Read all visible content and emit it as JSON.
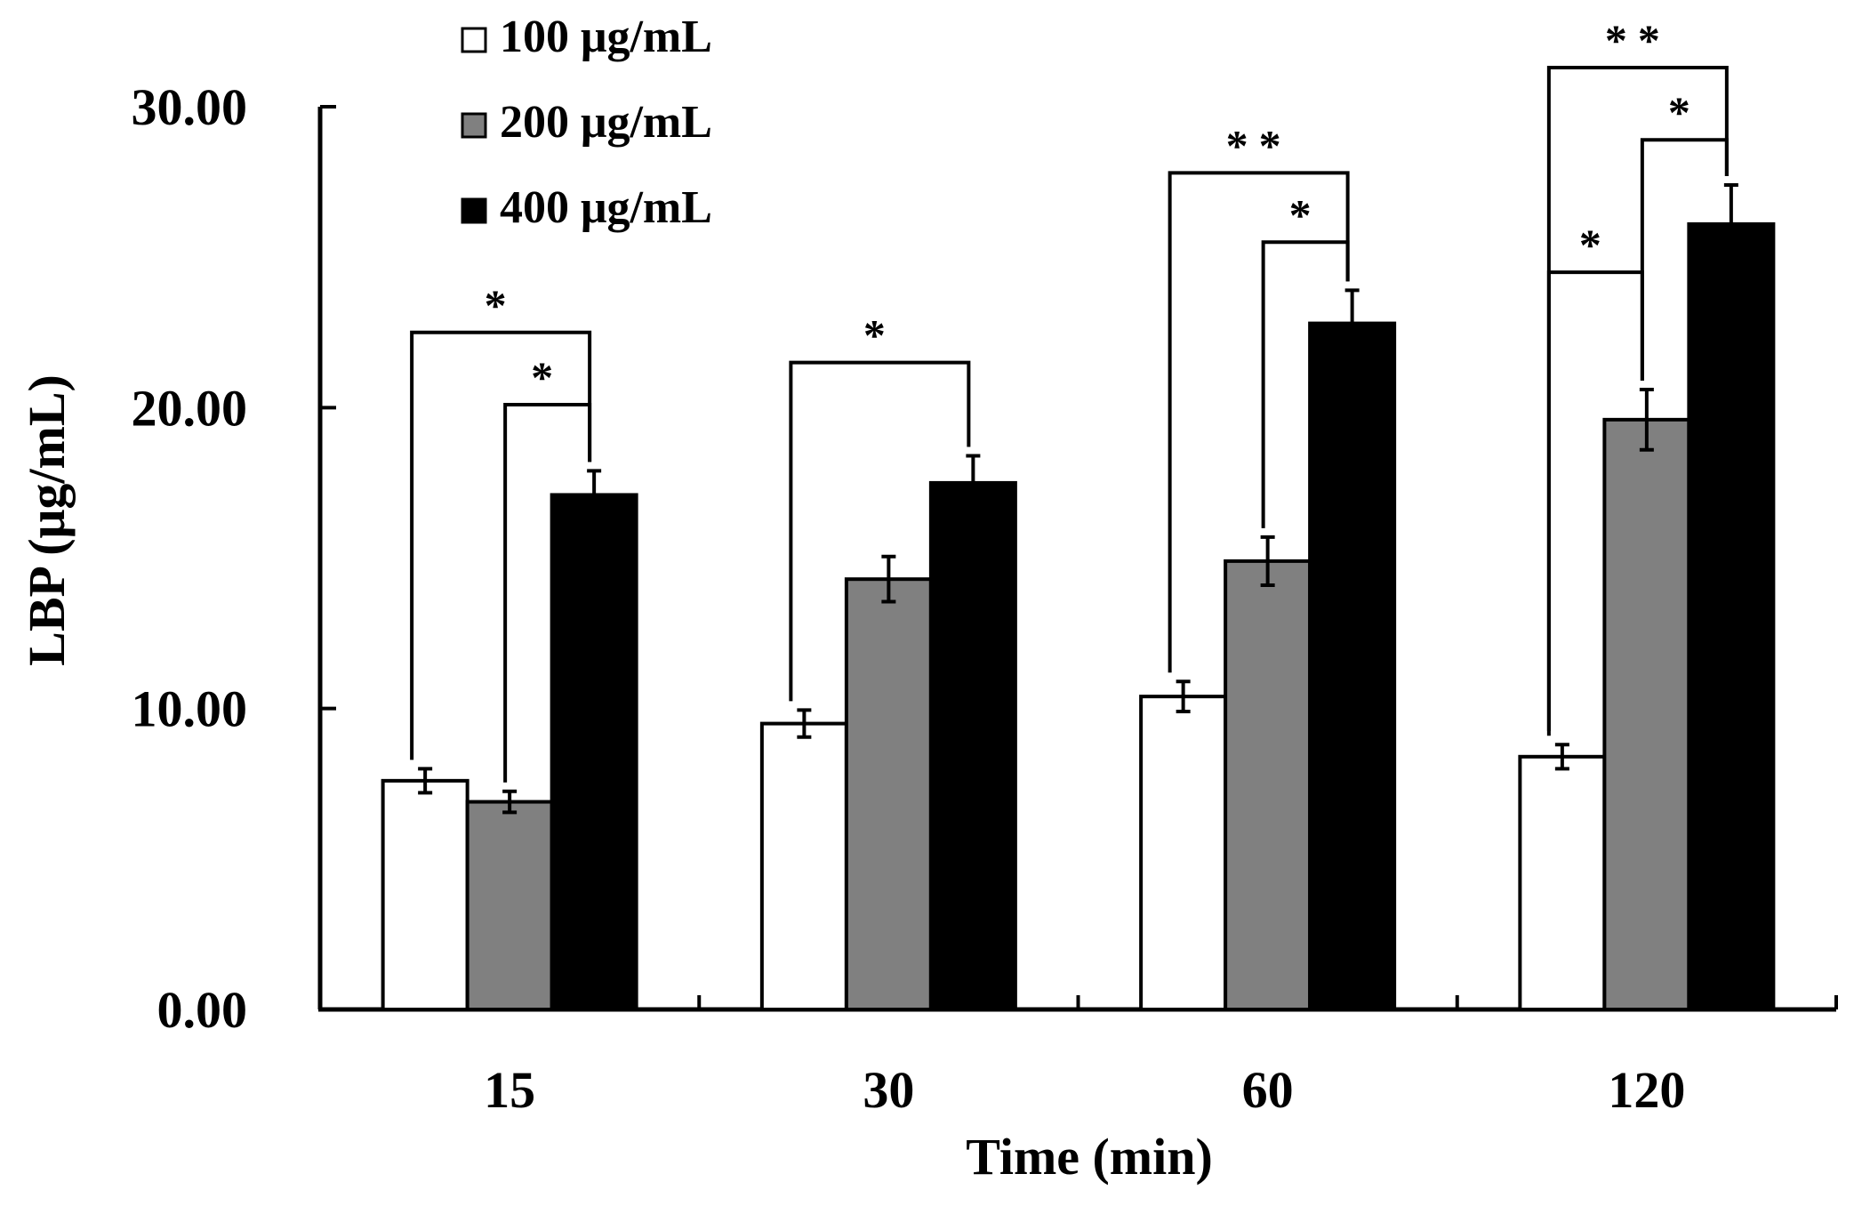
{
  "chart_data": {
    "type": "bar",
    "title": "",
    "xlabel": "Time (min)",
    "ylabel": "LBP (μg/mL)",
    "ylim": [
      0,
      30
    ],
    "yticks": [
      "0.00",
      "10.00",
      "20.00",
      "30.00"
    ],
    "categories": [
      "15",
      "30",
      "60",
      "120"
    ],
    "series": [
      {
        "name": "100 μg/mL",
        "color": "#ffffff",
        "values": [
          7.6,
          9.5,
          10.4,
          8.4
        ],
        "errors": [
          0.4,
          0.45,
          0.5,
          0.4
        ]
      },
      {
        "name": "200 μg/mL",
        "color": "#808080",
        "values": [
          6.9,
          14.3,
          14.9,
          19.6
        ],
        "errors": [
          0.35,
          0.75,
          0.8,
          1.0
        ]
      },
      {
        "name": "400 μg/mL",
        "color": "#000000",
        "values": [
          17.1,
          17.5,
          22.8,
          26.1
        ],
        "errors": [
          0.8,
          0.9,
          1.1,
          1.3
        ]
      }
    ],
    "legend_position": "top-left",
    "significance": [
      {
        "category": "15",
        "from_series": 0,
        "to_series": 2,
        "label": "*"
      },
      {
        "category": "15",
        "from_series": 1,
        "to_series": 2,
        "label": "*"
      },
      {
        "category": "30",
        "from_series": 0,
        "to_series": 2,
        "label": "*"
      },
      {
        "category": "60",
        "from_series": 0,
        "to_series": 2,
        "label": "**"
      },
      {
        "category": "60",
        "from_series": 1,
        "to_series": 2,
        "label": "*"
      },
      {
        "category": "120",
        "from_series": 0,
        "to_series": 2,
        "label": "**"
      },
      {
        "category": "120",
        "from_series": 1,
        "to_series": 2,
        "label": "*"
      },
      {
        "category": "120",
        "from_series": 0,
        "to_series": 1,
        "label": "*"
      }
    ]
  }
}
